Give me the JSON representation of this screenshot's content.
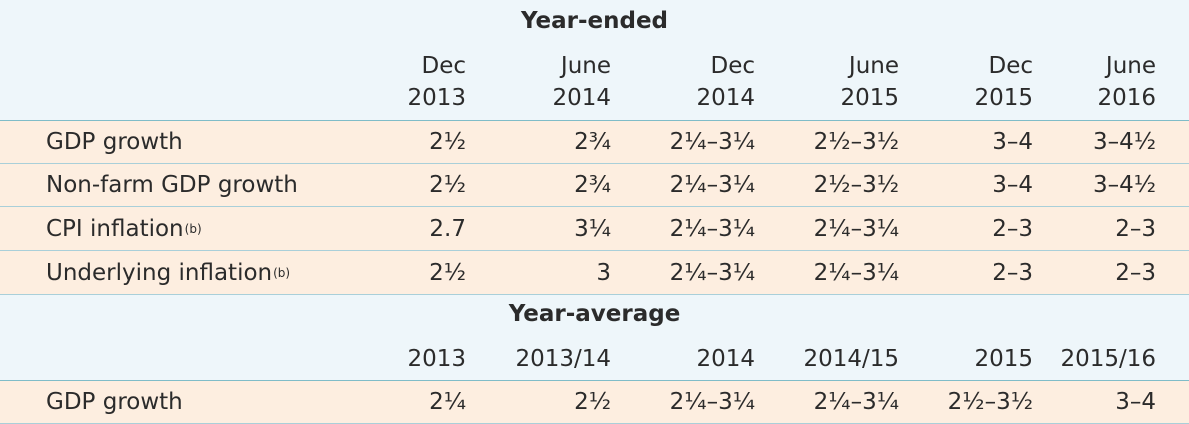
{
  "year_ended": {
    "title": "Year-ended",
    "columns": [
      {
        "line1": "Dec",
        "line2": "2013"
      },
      {
        "line1": "June",
        "line2": "2014"
      },
      {
        "line1": "Dec",
        "line2": "2014"
      },
      {
        "line1": "June",
        "line2": "2015"
      },
      {
        "line1": "Dec",
        "line2": "2015"
      },
      {
        "line1": "June",
        "line2": "2016"
      }
    ],
    "rows": [
      {
        "label": "GDP growth",
        "note": "",
        "values": [
          "2½",
          "2¾",
          "2¼–3¼",
          "2½–3½",
          "3–4",
          "3–4½"
        ]
      },
      {
        "label": "Non-farm GDP growth",
        "note": "",
        "values": [
          "2½",
          "2¾",
          "2¼–3¼",
          "2½–3½",
          "3–4",
          "3–4½"
        ]
      },
      {
        "label": "CPI inflation",
        "note": "(b)",
        "values": [
          "2.7",
          "3¼",
          "2¼–3¼",
          "2¼–3¼",
          "2–3",
          "2–3"
        ]
      },
      {
        "label": "Underlying inflation",
        "note": "(b)",
        "values": [
          "2½",
          "3",
          "2¼–3¼",
          "2¼–3¼",
          "2–3",
          "2–3"
        ]
      }
    ]
  },
  "year_average": {
    "title": "Year-average",
    "columns": [
      "2013",
      "2013/14",
      "2014",
      "2014/15",
      "2015",
      "2015/16"
    ],
    "rows": [
      {
        "label": "GDP growth",
        "values": [
          "2¼",
          "2½",
          "2¼–3¼",
          "2¼–3¼",
          "2½–3½",
          "3–4"
        ]
      }
    ]
  },
  "colors": {
    "header_bg": "#eef6fa",
    "row_bg": "#fdeee0",
    "rule": "#a9cfd9",
    "text": "#2b2b2b"
  }
}
